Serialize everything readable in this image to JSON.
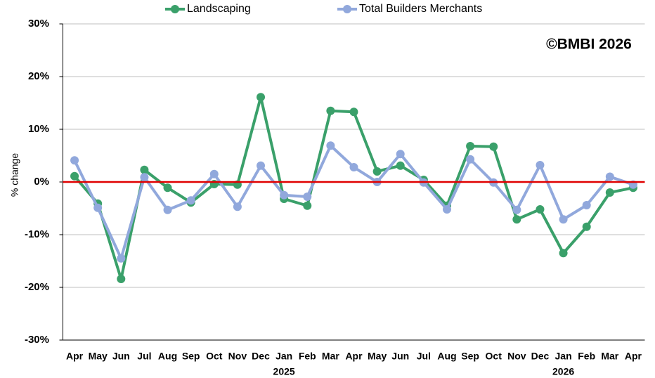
{
  "chart_data": {
    "type": "line",
    "annotation": "©BMBI 2026",
    "y_label": "% change",
    "categories": [
      "Apr",
      "May",
      "Jun",
      "Jul",
      "Aug",
      "Sep",
      "Oct",
      "Nov",
      "Dec",
      "Jan",
      "Feb",
      "Mar",
      "Apr",
      "May",
      "Jun",
      "Jul",
      "Aug",
      "Sep",
      "Oct",
      "Nov",
      "Dec",
      "Jan",
      "Feb",
      "Mar",
      "Apr"
    ],
    "year_labels": [
      null,
      null,
      null,
      null,
      null,
      null,
      null,
      null,
      null,
      "2025",
      null,
      null,
      null,
      null,
      null,
      null,
      null,
      null,
      null,
      null,
      null,
      "2026",
      null,
      null,
      null
    ],
    "series": [
      {
        "name": "Landscaping",
        "color": "#3aa06a",
        "values": [
          1.1,
          -4.1,
          -18.4,
          2.3,
          -1.1,
          -3.9,
          -0.4,
          -0.5,
          16.1,
          -3.2,
          -4.5,
          13.5,
          13.3,
          2.0,
          3.1,
          0.4,
          -4.5,
          6.8,
          6.7,
          -7.1,
          -5.2,
          -13.5,
          -8.5,
          -2.0,
          -1.1
        ]
      },
      {
        "name": "Total Builders Merchants",
        "color": "#91a8dc",
        "values": [
          4.1,
          -4.9,
          -14.5,
          0.9,
          -5.3,
          -3.5,
          1.5,
          -4.7,
          3.1,
          -2.5,
          -2.8,
          6.9,
          2.8,
          0.0,
          5.3,
          -0.1,
          -5.2,
          4.3,
          -0.1,
          -5.3,
          3.2,
          -7.1,
          -4.4,
          1.0,
          -0.5
        ]
      }
    ],
    "ylim": [
      -30,
      30
    ],
    "yticks": [
      {
        "value": -30,
        "label": "-30%"
      },
      {
        "value": -20,
        "label": "-20%"
      },
      {
        "value": -10,
        "label": "-10%"
      },
      {
        "value": 0,
        "label": "0%"
      },
      {
        "value": 10,
        "label": "10%"
      },
      {
        "value": 20,
        "label": "20%"
      },
      {
        "value": 30,
        "label": "30%"
      }
    ],
    "grid": true,
    "grid_color": "#bfbfbf",
    "zero_line_color": "#e00000",
    "legend": "top"
  }
}
